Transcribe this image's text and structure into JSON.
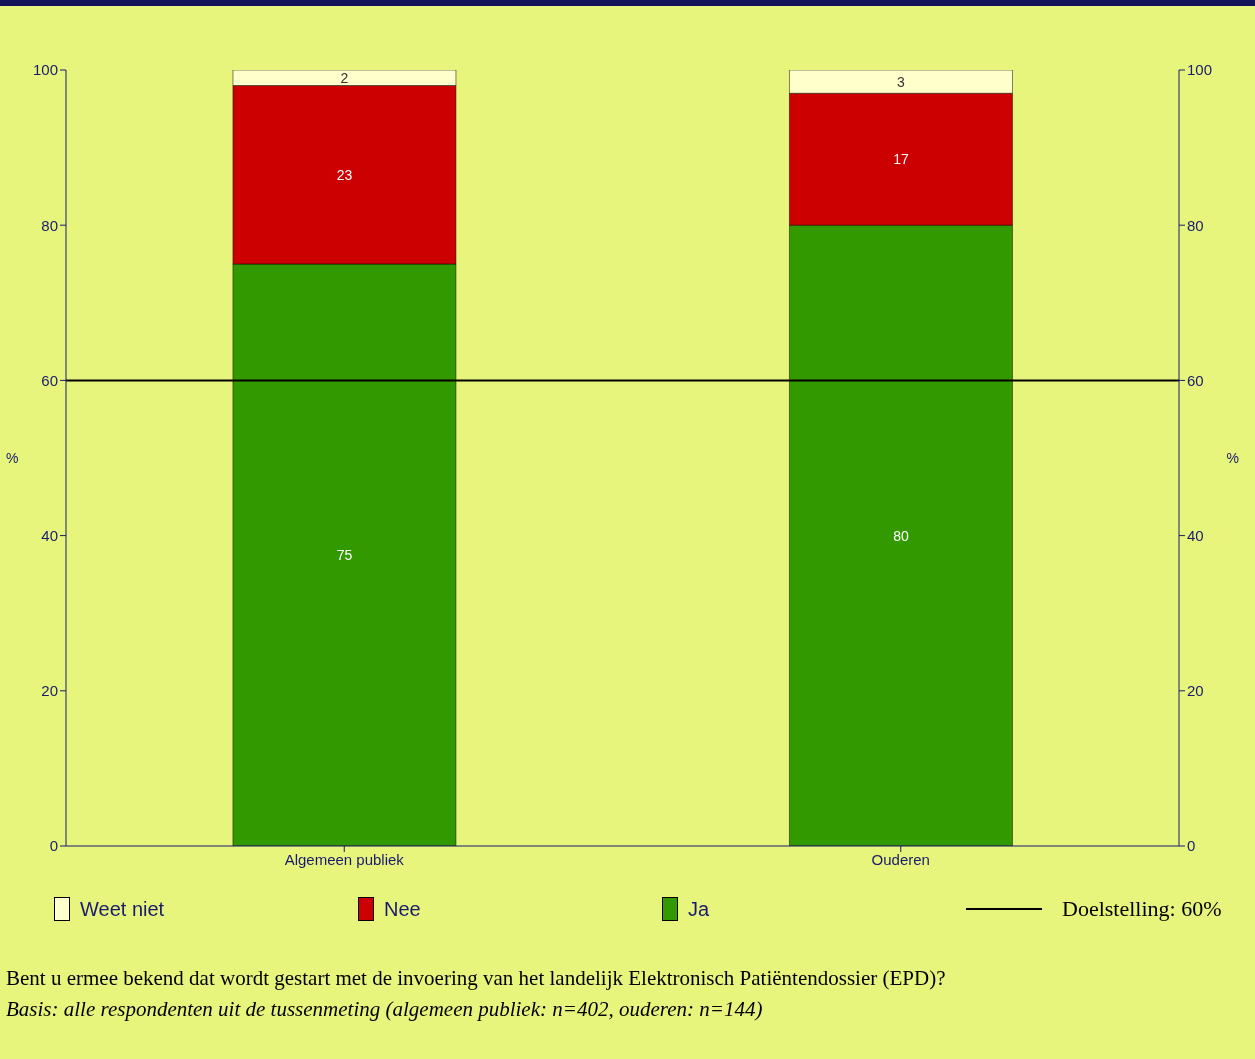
{
  "chart_data": {
    "type": "bar",
    "stacked": true,
    "categories": [
      "Algemeen publiek",
      "Ouderen"
    ],
    "series": [
      {
        "name": "Ja",
        "color": "#339900",
        "values": [
          75,
          80
        ]
      },
      {
        "name": "Nee",
        "color": "#cc0000",
        "values": [
          23,
          17
        ]
      },
      {
        "name": "Weet niet",
        "color": "#ffffcc",
        "values": [
          2,
          3
        ]
      }
    ],
    "data_labels": true,
    "ylim": [
      0,
      100
    ],
    "yticks": [
      0,
      20,
      40,
      60,
      80,
      100
    ],
    "ylabel": "%",
    "y2lim": [
      0,
      100
    ],
    "y2ticks": [
      0,
      20,
      40,
      60,
      80,
      100
    ],
    "y2label": "%",
    "ref_lines": [
      {
        "axis": "y",
        "value": 60,
        "label": "Doelstelling: 60%",
        "color": "#000000"
      }
    ],
    "grid": false,
    "legend": "bottom",
    "annotations": [
      "Bent u ermee bekend dat wordt gestart met de invoering van het landelijk Elektronisch Patiëntendossier (EPD)?",
      "Basis: alle respondenten uit de tussenmeting (algemeen publiek: n=402, ouderen: n=144)"
    ]
  }
}
